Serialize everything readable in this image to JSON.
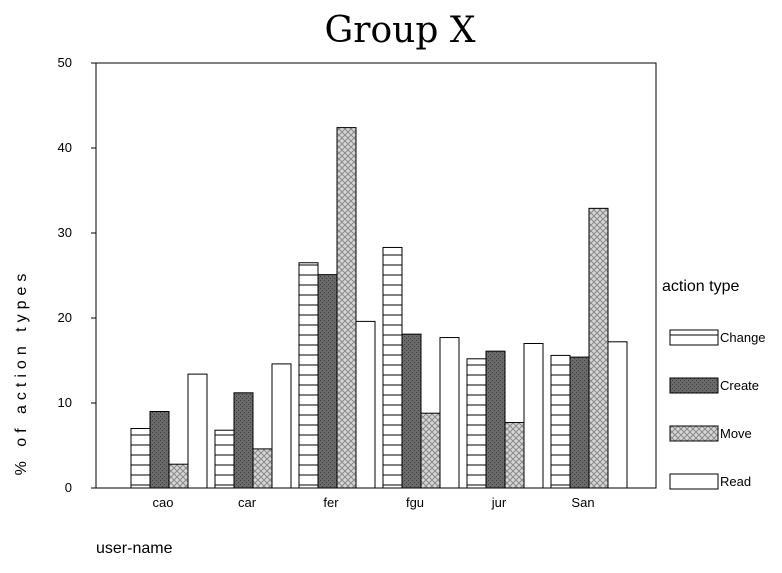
{
  "chart_data": {
    "type": "bar",
    "title": "Group X",
    "xlabel": "user-name",
    "ylabel": "% of action types",
    "ylim": [
      0,
      50
    ],
    "yticks": [
      "0",
      "10",
      "20",
      "30",
      "40",
      "50"
    ],
    "categories": [
      "cao",
      "car",
      "fer",
      "fgu",
      "jur",
      "San"
    ],
    "legend": {
      "title": "action type",
      "position": "right"
    },
    "series": [
      {
        "name": "Change",
        "pattern": "horizontal-lines",
        "values": [
          7.0,
          6.8,
          26.5,
          28.3,
          15.2,
          15.6
        ]
      },
      {
        "name": "Create",
        "pattern": "dark-gray",
        "values": [
          9.0,
          11.2,
          25.1,
          18.1,
          16.1,
          15.4
        ]
      },
      {
        "name": "Move",
        "pattern": "light-crosshatch",
        "values": [
          2.8,
          4.6,
          42.4,
          8.8,
          7.7,
          32.9
        ]
      },
      {
        "name": "Read",
        "pattern": "white",
        "values": [
          13.4,
          14.6,
          19.6,
          17.7,
          17.0,
          17.2
        ]
      }
    ],
    "colors": {
      "dark": "#6a6a6a",
      "light": "#cfcfcf",
      "line": "#000000"
    }
  }
}
